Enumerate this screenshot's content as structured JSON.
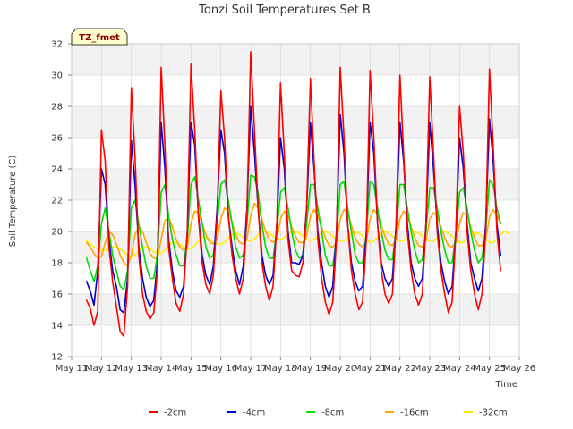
{
  "chart_data": {
    "type": "line",
    "title": "Tonzi Soil Temperatures Set B",
    "xlabel": "Time",
    "ylabel": "Soil Temperature (C)",
    "badge": "TZ_fmet",
    "ylim": [
      12,
      32
    ],
    "yticks": [
      12,
      14,
      16,
      18,
      20,
      22,
      24,
      26,
      28,
      30,
      32
    ],
    "x_tick_labels": [
      "May 11",
      "May 12",
      "May 13",
      "May 14",
      "May 15",
      "May 16",
      "May 17",
      "May 18",
      "May 19",
      "May 20",
      "May 21",
      "May 22",
      "May 23",
      "May 24",
      "May 25",
      "May 26"
    ],
    "x_note": "x values are days after May 11 00:00; each day has samples at 00,03,06,09,12,15,18,21 h",
    "x_start": 0.5,
    "x_step": 0.125,
    "grid": true,
    "legend_position": "bottom",
    "series": [
      {
        "name": "-2cm",
        "color": "#ff0000",
        "values": [
          15.6,
          15.1,
          14.0,
          14.9,
          26.5,
          24.5,
          19.0,
          16.8,
          15.2,
          13.6,
          13.3,
          16.5,
          29.2,
          24.8,
          18.5,
          16.0,
          14.9,
          14.4,
          14.8,
          17.5,
          30.5,
          25.5,
          19.0,
          17.0,
          15.4,
          14.9,
          16.0,
          20.0,
          30.7,
          26.5,
          20.8,
          18.0,
          16.6,
          16.0,
          17.2,
          21.0,
          29.0,
          26.0,
          21.0,
          18.5,
          17.0,
          16.0,
          17.0,
          21.0,
          31.5,
          26.5,
          21.5,
          18.0,
          16.5,
          15.6,
          16.5,
          20.5,
          29.5,
          25.0,
          19.5,
          17.5,
          17.2,
          17.1,
          18.0,
          21.5,
          29.8,
          24.5,
          19.5,
          17.0,
          15.5,
          14.7,
          15.5,
          19.5,
          30.5,
          26.0,
          20.5,
          17.5,
          16.0,
          15.0,
          15.5,
          19.5,
          30.3,
          26.0,
          20.5,
          17.5,
          16.0,
          15.4,
          16.0,
          20.5,
          30.0,
          25.0,
          20.0,
          17.5,
          16.0,
          15.3,
          16.0,
          20.5,
          29.9,
          25.0,
          20.0,
          17.5,
          16.0,
          14.8,
          15.5,
          20.0,
          28.0,
          25.0,
          20.0,
          17.5,
          16.0,
          15.0,
          16.0,
          20.0,
          30.4,
          25.5,
          20.0,
          17.5
        ]
      },
      {
        "name": "-4cm",
        "color": "#0000cc",
        "values": [
          16.8,
          16.2,
          15.3,
          17.5,
          24.0,
          23.0,
          19.5,
          17.5,
          16.5,
          15.0,
          14.8,
          17.0,
          25.8,
          23.0,
          19.0,
          17.0,
          15.8,
          15.2,
          15.6,
          18.0,
          27.0,
          24.0,
          19.5,
          17.5,
          16.2,
          15.8,
          16.5,
          20.0,
          27.0,
          25.5,
          21.0,
          18.5,
          17.2,
          16.6,
          17.8,
          21.5,
          26.5,
          25.0,
          21.0,
          19.0,
          17.5,
          16.6,
          17.8,
          21.5,
          28.0,
          25.0,
          21.5,
          18.5,
          17.2,
          16.6,
          17.2,
          20.5,
          26.0,
          24.0,
          20.0,
          18.0,
          18.0,
          17.9,
          18.5,
          21.5,
          27.0,
          24.0,
          20.0,
          18.0,
          16.5,
          15.8,
          16.5,
          20.0,
          27.5,
          25.0,
          20.5,
          18.0,
          16.8,
          16.2,
          16.5,
          20.0,
          27.0,
          25.0,
          20.5,
          18.0,
          17.0,
          16.5,
          17.0,
          20.5,
          27.0,
          24.5,
          20.5,
          18.0,
          17.0,
          16.5,
          17.0,
          20.5,
          27.0,
          24.0,
          20.5,
          18.0,
          16.8,
          16.0,
          16.5,
          20.0,
          26.0,
          24.0,
          20.5,
          18.0,
          17.0,
          16.2,
          17.0,
          20.5,
          27.2,
          24.5,
          20.5,
          18.5
        ]
      },
      {
        "name": "-8cm",
        "color": "#00dd00",
        "values": [
          18.3,
          17.5,
          16.8,
          17.8,
          20.5,
          21.5,
          20.0,
          18.5,
          17.5,
          16.5,
          16.3,
          17.5,
          21.5,
          22.0,
          20.5,
          19.0,
          17.8,
          17.0,
          17.0,
          18.5,
          22.5,
          23.0,
          21.0,
          19.5,
          18.5,
          17.8,
          17.8,
          19.5,
          23.0,
          23.5,
          22.0,
          20.5,
          19.0,
          18.3,
          18.5,
          20.5,
          23.0,
          23.3,
          22.0,
          20.5,
          19.0,
          18.3,
          18.5,
          20.5,
          23.6,
          23.5,
          22.5,
          20.5,
          19.0,
          18.3,
          18.3,
          20.0,
          22.5,
          22.8,
          21.5,
          20.0,
          18.8,
          18.3,
          18.5,
          20.5,
          23.0,
          23.0,
          21.5,
          20.0,
          18.5,
          17.8,
          17.8,
          19.5,
          23.0,
          23.2,
          21.5,
          20.0,
          18.5,
          18.0,
          18.0,
          19.8,
          23.2,
          23.0,
          21.5,
          20.0,
          18.8,
          18.2,
          18.2,
          20.0,
          23.0,
          23.0,
          21.5,
          20.0,
          18.8,
          18.0,
          18.2,
          20.0,
          22.8,
          22.8,
          21.5,
          20.0,
          18.8,
          18.0,
          18.0,
          19.8,
          22.5,
          22.8,
          21.5,
          20.0,
          18.8,
          18.0,
          18.3,
          20.0,
          23.3,
          23.0,
          21.5,
          20.5
        ]
      },
      {
        "name": "-16cm",
        "color": "#ffa500",
        "values": [
          19.3,
          19.0,
          18.6,
          18.3,
          18.4,
          19.3,
          20.0,
          19.8,
          19.2,
          18.5,
          18.0,
          17.8,
          18.5,
          19.8,
          20.3,
          20.0,
          19.3,
          18.6,
          18.3,
          18.3,
          19.5,
          20.7,
          20.9,
          20.3,
          19.5,
          19.0,
          18.8,
          19.0,
          20.5,
          21.3,
          21.2,
          20.5,
          19.8,
          19.3,
          19.2,
          19.5,
          20.8,
          21.5,
          21.3,
          20.6,
          19.8,
          19.3,
          19.2,
          19.5,
          21.0,
          21.8,
          21.5,
          20.8,
          20.0,
          19.5,
          19.3,
          19.5,
          20.8,
          21.3,
          21.0,
          20.3,
          19.7,
          19.3,
          19.3,
          19.7,
          21.0,
          21.4,
          21.0,
          20.3,
          19.6,
          19.1,
          19.0,
          19.3,
          20.8,
          21.4,
          21.2,
          20.4,
          19.6,
          19.2,
          19.0,
          19.4,
          20.8,
          21.4,
          21.1,
          20.4,
          19.7,
          19.2,
          19.1,
          19.5,
          20.8,
          21.3,
          21.0,
          20.3,
          19.6,
          19.1,
          19.0,
          19.4,
          20.8,
          21.2,
          21.0,
          20.3,
          19.6,
          19.1,
          19.0,
          19.3,
          20.5,
          21.2,
          21.0,
          20.3,
          19.6,
          19.1,
          19.1,
          19.5,
          20.9,
          21.4,
          21.0,
          20.5
        ]
      },
      {
        "name": "-32cm",
        "color": "#ffee00",
        "values": [
          19.4,
          19.2,
          19.0,
          18.9,
          18.8,
          18.8,
          18.9,
          19.0,
          19.0,
          18.9,
          18.7,
          18.5,
          18.4,
          18.5,
          18.8,
          19.0,
          19.0,
          18.9,
          18.7,
          18.6,
          18.6,
          18.8,
          19.1,
          19.3,
          19.3,
          19.2,
          19.0,
          18.9,
          18.9,
          19.1,
          19.4,
          19.6,
          19.6,
          19.5,
          19.3,
          19.2,
          19.2,
          19.3,
          19.6,
          19.8,
          19.9,
          19.8,
          19.6,
          19.4,
          19.4,
          19.5,
          19.8,
          20.0,
          20.0,
          19.9,
          19.7,
          19.5,
          19.5,
          19.6,
          19.8,
          20.0,
          20.0,
          19.9,
          19.7,
          19.5,
          19.4,
          19.5,
          19.7,
          19.9,
          20.0,
          19.9,
          19.7,
          19.5,
          19.4,
          19.4,
          19.6,
          19.9,
          20.0,
          19.9,
          19.7,
          19.5,
          19.3,
          19.4,
          19.6,
          19.9,
          20.0,
          19.9,
          19.7,
          19.5,
          19.4,
          19.4,
          19.6,
          19.9,
          20.0,
          19.9,
          19.7,
          19.5,
          19.4,
          19.4,
          19.6,
          19.9,
          20.0,
          19.9,
          19.7,
          19.5,
          19.3,
          19.3,
          19.5,
          19.8,
          19.9,
          19.9,
          19.7,
          19.5,
          19.3,
          19.3,
          19.5,
          19.8,
          20.0,
          19.9
        ]
      }
    ]
  }
}
